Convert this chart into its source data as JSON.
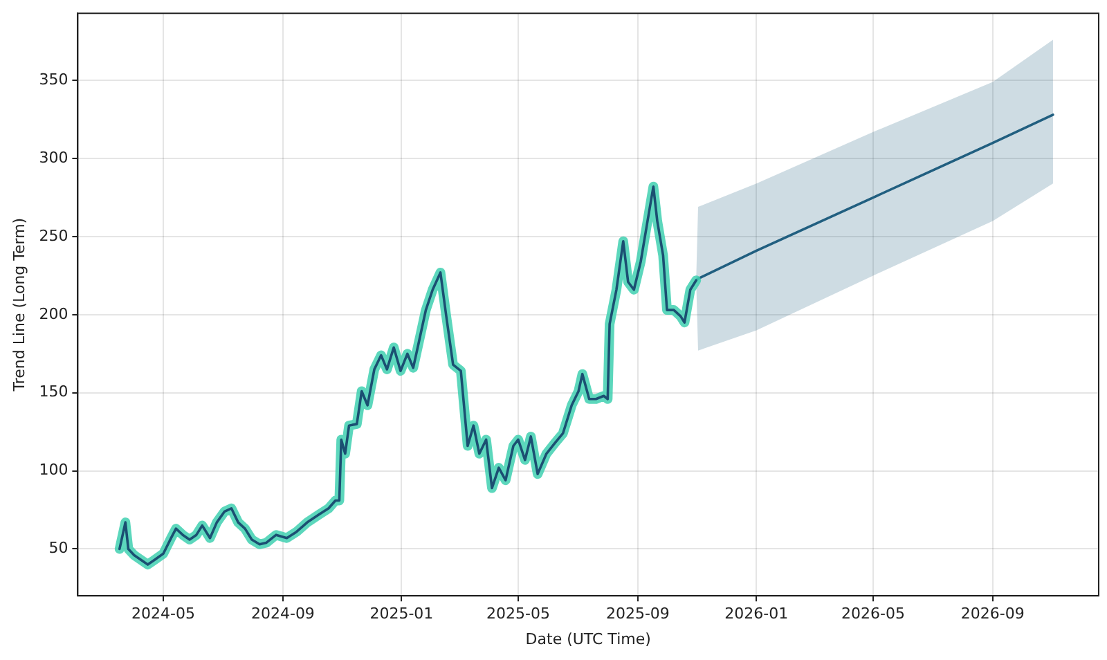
{
  "chart_data": {
    "type": "line",
    "xlabel": "Date (UTC Time)",
    "ylabel": "Trend Line (Long Term)",
    "xlim": [
      "2024-02-03",
      "2026-12-19"
    ],
    "ylim": [
      20,
      393
    ],
    "xticks": [
      "2024-05",
      "2024-09",
      "2025-01",
      "2025-05",
      "2025-09",
      "2026-01",
      "2026-05",
      "2026-09"
    ],
    "yticks": [
      50,
      100,
      150,
      200,
      250,
      300,
      350
    ],
    "grid": true,
    "marker": "none",
    "line_style": "solid",
    "series": [
      {
        "color": "#1b4f72",
        "x": [
          "2024-03-17",
          "2024-03-23",
          "2024-03-26",
          "2024-04-01",
          "2024-04-08",
          "2024-04-15",
          "2024-04-22",
          "2024-05-01",
          "2024-05-09",
          "2024-05-14",
          "2024-05-21",
          "2024-05-28",
          "2024-06-04",
          "2024-06-10",
          "2024-06-18",
          "2024-06-25",
          "2024-07-03",
          "2024-07-10",
          "2024-07-17",
          "2024-07-24",
          "2024-07-31",
          "2024-08-08",
          "2024-08-15",
          "2024-08-25",
          "2024-09-05",
          "2024-09-15",
          "2024-09-26",
          "2024-10-08",
          "2024-10-18",
          "2024-10-25",
          "2024-10-29",
          "2024-10-31",
          "2024-11-04",
          "2024-11-08",
          "2024-11-16",
          "2024-11-21",
          "2024-11-27",
          "2024-12-04",
          "2024-12-11",
          "2024-12-17",
          "2024-12-24",
          "2024-12-31",
          "2025-01-07",
          "2025-01-13",
          "2025-01-19",
          "2025-01-26",
          "2025-02-02",
          "2025-02-10",
          "2025-02-16",
          "2025-02-23",
          "2025-03-03",
          "2025-03-10",
          "2025-03-16",
          "2025-03-22",
          "2025-03-29",
          "2025-04-04",
          "2025-04-11",
          "2025-04-18",
          "2025-04-26",
          "2025-05-01",
          "2025-05-08",
          "2025-05-14",
          "2025-05-21",
          "2025-05-30",
          "2025-06-08",
          "2025-06-16",
          "2025-06-25",
          "2025-07-02",
          "2025-07-06",
          "2025-07-13",
          "2025-07-20",
          "2025-07-28",
          "2025-08-01",
          "2025-08-03",
          "2025-08-10",
          "2025-08-17",
          "2025-08-22",
          "2025-08-28",
          "2025-09-04",
          "2025-09-11",
          "2025-09-17",
          "2025-09-21",
          "2025-09-27",
          "2025-10-01",
          "2025-10-08",
          "2025-10-15",
          "2025-10-19",
          "2025-10-25",
          "2025-10-31"
        ],
        "values": [
          50,
          67,
          50,
          46,
          43,
          40,
          43,
          47,
          57,
          63,
          59,
          56,
          59,
          65,
          57,
          67,
          74,
          76,
          67,
          63,
          56,
          53,
          54,
          59,
          57,
          61,
          67,
          72,
          76,
          81,
          81,
          120,
          111,
          129,
          130,
          151,
          142,
          165,
          174,
          165,
          179,
          164,
          175,
          166,
          183,
          203,
          216,
          227,
          199,
          168,
          164,
          116,
          129,
          111,
          120,
          89,
          102,
          94,
          116,
          120,
          107,
          122,
          98,
          111,
          118,
          124,
          142,
          151,
          162,
          146,
          146,
          148,
          146,
          194,
          216,
          247,
          221,
          216,
          234,
          260,
          282,
          260,
          238,
          203,
          203,
          199,
          195,
          216,
          222
        ]
      },
      {
        "color": "#215f80",
        "x": [
          "2025-10-31",
          "2025-11-02",
          "2026-01-01",
          "2026-05-01",
          "2026-09-01",
          "2026-11-02"
        ],
        "values": [
          222,
          223,
          241,
          275,
          310,
          328
        ],
        "lower": [
          222,
          177,
          190,
          225,
          260,
          284
        ],
        "upper": [
          222,
          269,
          284,
          317,
          349,
          376
        ]
      }
    ]
  }
}
